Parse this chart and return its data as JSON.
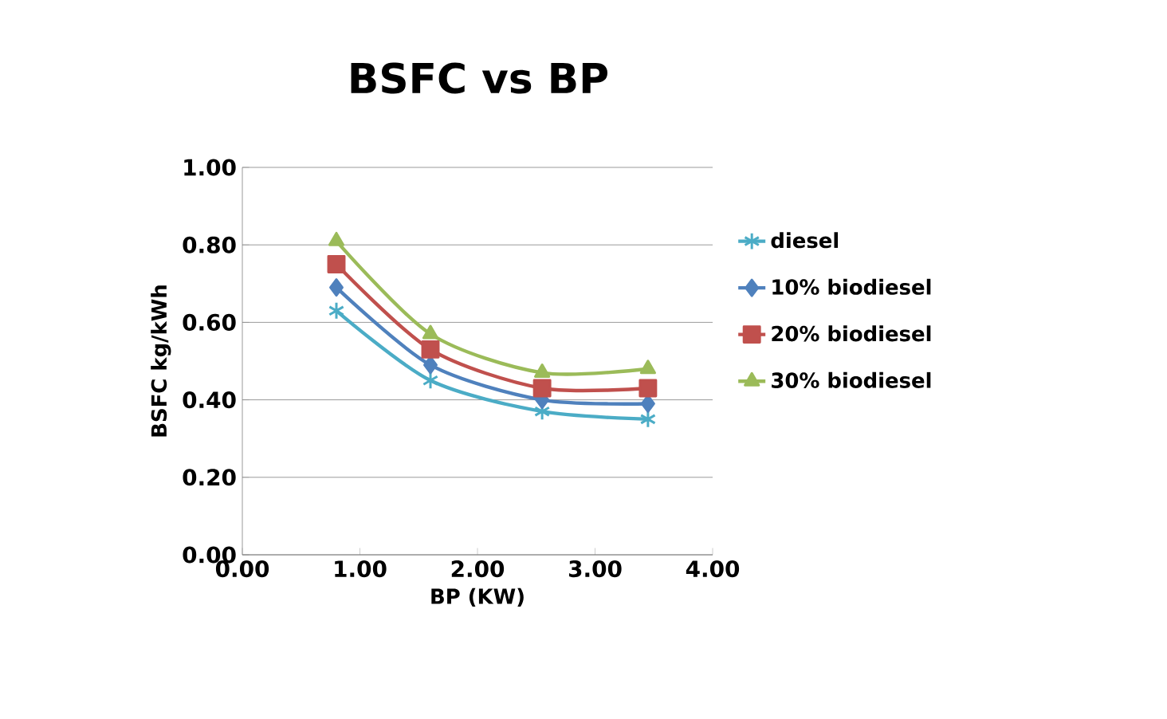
{
  "chart_data": {
    "type": "line",
    "title": "BSFC vs BP",
    "xlabel": "BP (KW)",
    "ylabel": "BSFC kg/kWh",
    "x": [
      0.8,
      1.6,
      2.55,
      3.45
    ],
    "series": [
      {
        "name": "diesel",
        "color": "#4bacc6",
        "marker": "cross",
        "values": [
          0.63,
          0.45,
          0.37,
          0.35
        ]
      },
      {
        "name": "10% biodiesel",
        "color": "#4f81bd",
        "marker": "diamond",
        "values": [
          0.69,
          0.49,
          0.4,
          0.39
        ]
      },
      {
        "name": "20% biodiesel",
        "color": "#c0504d",
        "marker": "square",
        "values": [
          0.75,
          0.53,
          0.43,
          0.43
        ]
      },
      {
        "name": "30% biodiesel",
        "color": "#9bbb59",
        "marker": "triangle",
        "values": [
          0.81,
          0.57,
          0.47,
          0.48
        ]
      }
    ],
    "xlim": [
      0,
      4
    ],
    "xticks": [
      {
        "value": 0,
        "label": "0.00"
      },
      {
        "value": 1,
        "label": "1.00"
      },
      {
        "value": 2,
        "label": "2.00"
      },
      {
        "value": 3,
        "label": "3.00"
      },
      {
        "value": 4,
        "label": "4.00"
      }
    ],
    "ylim": [
      0,
      1
    ],
    "yticks": [
      {
        "value": 0,
        "label": "0.00"
      },
      {
        "value": 0.2,
        "label": "0.20"
      },
      {
        "value": 0.4,
        "label": "0.40"
      },
      {
        "value": 0.6,
        "label": "0.60"
      },
      {
        "value": 0.8,
        "label": "0.80"
      },
      {
        "value": 1,
        "label": "1.00"
      }
    ],
    "grid": "y",
    "legend": "right",
    "line_style": "solid"
  }
}
